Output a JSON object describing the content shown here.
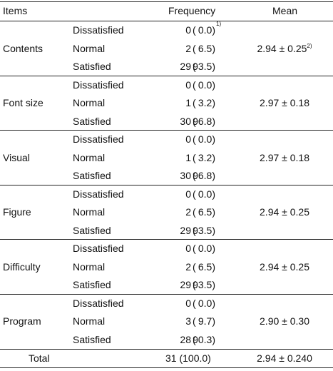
{
  "header": {
    "items": "Items",
    "frequency": "Frequency",
    "mean": "Mean"
  },
  "groups": [
    {
      "item": "Contents",
      "mean": "2.94 ± 0.25",
      "mean_note": "2)",
      "rows": [
        {
          "response": "Dissatisfied",
          "n": "0",
          "pct": "0.0",
          "note": "1)"
        },
        {
          "response": "Normal",
          "n": "2",
          "pct": "6.5",
          "note": ""
        },
        {
          "response": "Satisfied",
          "n": "29",
          "pct": "93.5",
          "note": ""
        }
      ]
    },
    {
      "item": "Font size",
      "mean": "2.97 ± 0.18",
      "mean_note": "",
      "rows": [
        {
          "response": "Dissatisfied",
          "n": "0",
          "pct": "0.0",
          "note": ""
        },
        {
          "response": "Normal",
          "n": "1",
          "pct": "3.2",
          "note": ""
        },
        {
          "response": "Satisfied",
          "n": "30",
          "pct": "96.8",
          "note": ""
        }
      ]
    },
    {
      "item": "Visual",
      "mean": "2.97 ± 0.18",
      "mean_note": "",
      "rows": [
        {
          "response": "Dissatisfied",
          "n": "0",
          "pct": "0.0",
          "note": ""
        },
        {
          "response": "Normal",
          "n": "1",
          "pct": "3.2",
          "note": ""
        },
        {
          "response": "Satisfied",
          "n": "30",
          "pct": "96.8",
          "note": ""
        }
      ]
    },
    {
      "item": "Figure",
      "mean": "2.94 ± 0.25",
      "mean_note": "",
      "rows": [
        {
          "response": "Dissatisfied",
          "n": "0",
          "pct": "0.0",
          "note": ""
        },
        {
          "response": "Normal",
          "n": "2",
          "pct": "6.5",
          "note": ""
        },
        {
          "response": "Satisfied",
          "n": "29",
          "pct": "93.5",
          "note": ""
        }
      ]
    },
    {
      "item": "Difficulty",
      "mean": "2.94 ± 0.25",
      "mean_note": "",
      "rows": [
        {
          "response": "Dissatisfied",
          "n": "0",
          "pct": "0.0",
          "note": ""
        },
        {
          "response": "Normal",
          "n": "2",
          "pct": "6.5",
          "note": ""
        },
        {
          "response": "Satisfied",
          "n": "29",
          "pct": "93.5",
          "note": ""
        }
      ]
    },
    {
      "item": "Program",
      "mean": "2.90 ± 0.30",
      "mean_note": "",
      "rows": [
        {
          "response": "Dissatisfied",
          "n": "0",
          "pct": "0.0",
          "note": ""
        },
        {
          "response": "Normal",
          "n": "3",
          "pct": "9.7",
          "note": ""
        },
        {
          "response": "Satisfied",
          "n": "28",
          "pct": "90.3",
          "note": ""
        }
      ]
    }
  ],
  "total": {
    "label": "Total",
    "frequency": "31 (100.0)",
    "mean": "2.94 ± 0.240"
  }
}
